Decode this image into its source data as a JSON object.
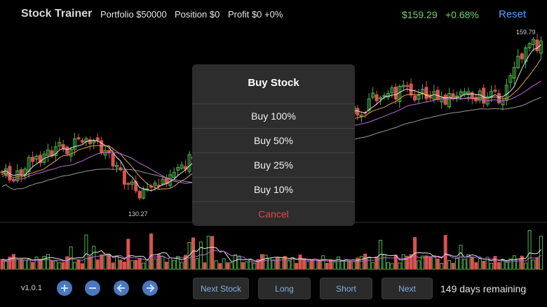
{
  "header": {
    "title": "Stock Trainer",
    "portfolio": "Portfolio  $50000",
    "position": "Position  $0",
    "profit": "Profit  $0  +0%",
    "price": "$159.29",
    "change": "+0.68%",
    "reset_label": "Reset"
  },
  "chart": {
    "high_label": "159.79",
    "low_label": "130.27",
    "colors": {
      "up": "#4fb84f",
      "down": "#d9534f",
      "ma_short": "#e6e6e6",
      "ma_mid": "#e8a04a",
      "ma_long": "#c06ad6"
    }
  },
  "modal": {
    "title": "Buy Stock",
    "options": [
      "Buy 100%",
      "Buy 50%",
      "Buy 25%",
      "Buy 10%"
    ],
    "cancel_label": "Cancel"
  },
  "footer": {
    "version": "v1.0.1",
    "icons": [
      "zoom-in-icon",
      "zoom-out-icon",
      "arrow-left-icon",
      "arrow-right-icon"
    ],
    "buttons": [
      "Next Stock",
      "Long",
      "Short",
      "Next"
    ],
    "days_remaining": "149 days remaining"
  }
}
